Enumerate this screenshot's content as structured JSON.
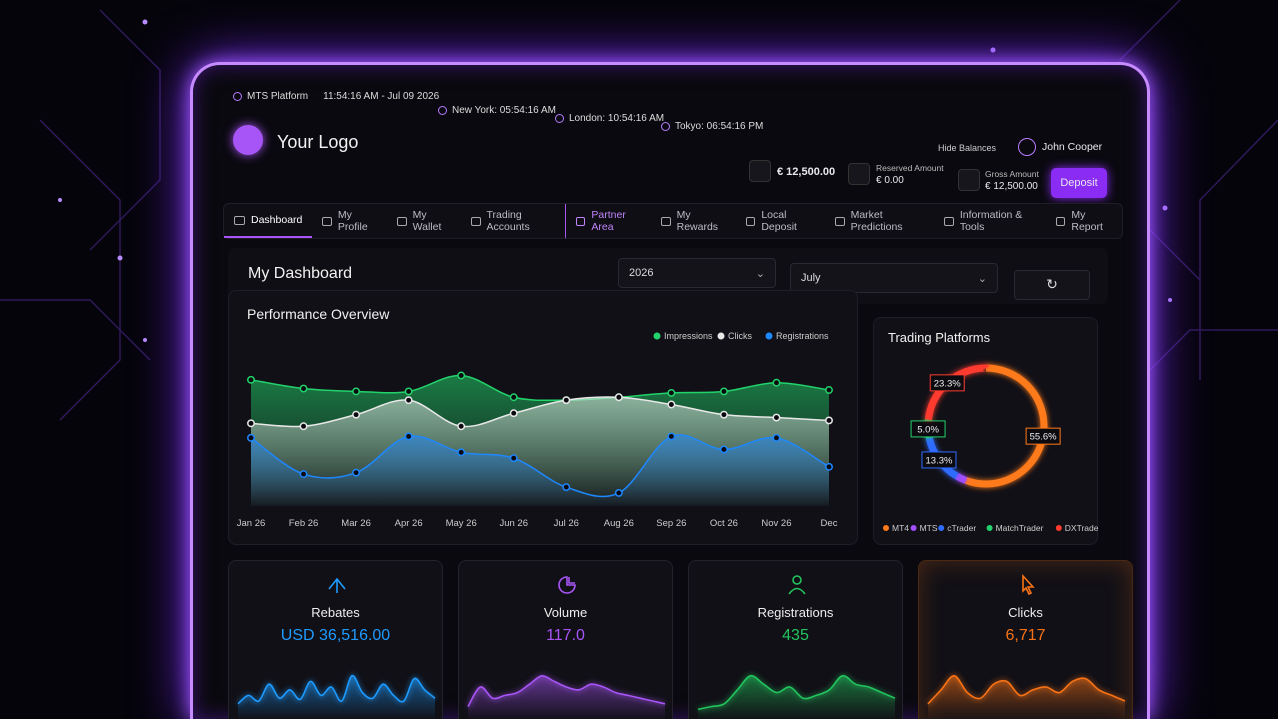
{
  "topbar": {
    "platform": "MTS Platform",
    "datetime": "11:54:16 AM - Jul 09 2026",
    "clocks": [
      "New York: 05:54:16 AM",
      "London: 10:54:16 AM",
      "Tokyo: 06:54:16 PM"
    ]
  },
  "header": {
    "logo": "Your Logo",
    "hide_balances": "Hide Balances",
    "user": "John Cooper",
    "balance": "€ 12,500.00",
    "reserved_label": "Reserved Amount",
    "reserved_value": "€ 0.00",
    "gross_label": "Gross Amount",
    "gross_value": "€ 12,500.00",
    "deposit": "Deposit"
  },
  "nav": {
    "items": [
      "Dashboard",
      "My Profile",
      "My Wallet",
      "Trading Accounts",
      "Partner Area",
      "My Rewards",
      "Local Deposit",
      "Market Predictions",
      "Information & Tools",
      "My Report"
    ]
  },
  "dashboard": {
    "title": "My Dashboard",
    "year": "2026",
    "month": "July"
  },
  "chart_data": [
    {
      "type": "line",
      "title": "Performance Overview",
      "categories": [
        "Jan 26",
        "Feb 26",
        "Mar 26",
        "Apr 26",
        "May 26",
        "Jun 26",
        "Jul 26",
        "Aug 26",
        "Sep 26",
        "Oct 26",
        "Nov 26",
        "Dec"
      ],
      "ylim": [
        0,
        100
      ],
      "series": [
        {
          "name": "Impressions",
          "color": "#22d36b",
          "values": [
            87,
            81,
            79,
            79,
            90,
            75,
            73,
            75,
            78,
            79,
            85,
            80
          ]
        },
        {
          "name": "Clicks",
          "color": "#e8e8e8",
          "values": [
            57,
            55,
            63,
            73,
            55,
            64,
            73,
            75,
            70,
            63,
            61,
            59
          ]
        },
        {
          "name": "Registrations",
          "color": "#1e88ff",
          "values": [
            47,
            22,
            23,
            48,
            37,
            33,
            13,
            9,
            48,
            39,
            47,
            27
          ]
        }
      ]
    },
    {
      "type": "pie",
      "title": "Trading Platforms",
      "categories": [
        "MT4",
        "MTS",
        "cTrader",
        "MatchTrader",
        "DXTrade"
      ],
      "values": [
        55.6,
        2.8,
        13.3,
        5.0,
        23.3
      ],
      "value_labels": [
        "55.6%",
        null,
        "13.3%",
        "5.0%",
        "23.3%"
      ],
      "colors": [
        "#ff7a1a",
        "#a24dff",
        "#2f6bff",
        "#22d36b",
        "#ff3b2f"
      ]
    }
  ],
  "cards": [
    {
      "title": "Rebates",
      "value": "USD 36,516.00",
      "color": "#1e9bff",
      "type": "area",
      "ylim": [
        0,
        100
      ],
      "spark": [
        20,
        35,
        25,
        55,
        30,
        45,
        28,
        60,
        35,
        50,
        25,
        70,
        40,
        30,
        55,
        35,
        25,
        65,
        45,
        30
      ]
    },
    {
      "title": "Volume",
      "value": "117.0",
      "color": "#a855f7",
      "type": "area",
      "ylim": [
        0,
        100
      ],
      "spark": [
        15,
        50,
        30,
        35,
        40,
        55,
        70,
        60,
        50,
        45,
        55,
        50,
        40,
        35,
        30,
        25,
        20
      ]
    },
    {
      "title": "Registrations",
      "value": "435",
      "color": "#22c55e",
      "type": "area",
      "ylim": [
        0,
        100
      ],
      "spark": [
        10,
        15,
        20,
        45,
        70,
        55,
        40,
        50,
        30,
        35,
        45,
        70,
        55,
        50,
        40,
        30
      ]
    },
    {
      "title": "Clicks",
      "value": "6,717",
      "color": "#f97316",
      "type": "area",
      "ylim": [
        0,
        100
      ],
      "spark": [
        20,
        45,
        70,
        40,
        30,
        55,
        60,
        35,
        45,
        50,
        40,
        60,
        65,
        45,
        35,
        25
      ]
    }
  ]
}
